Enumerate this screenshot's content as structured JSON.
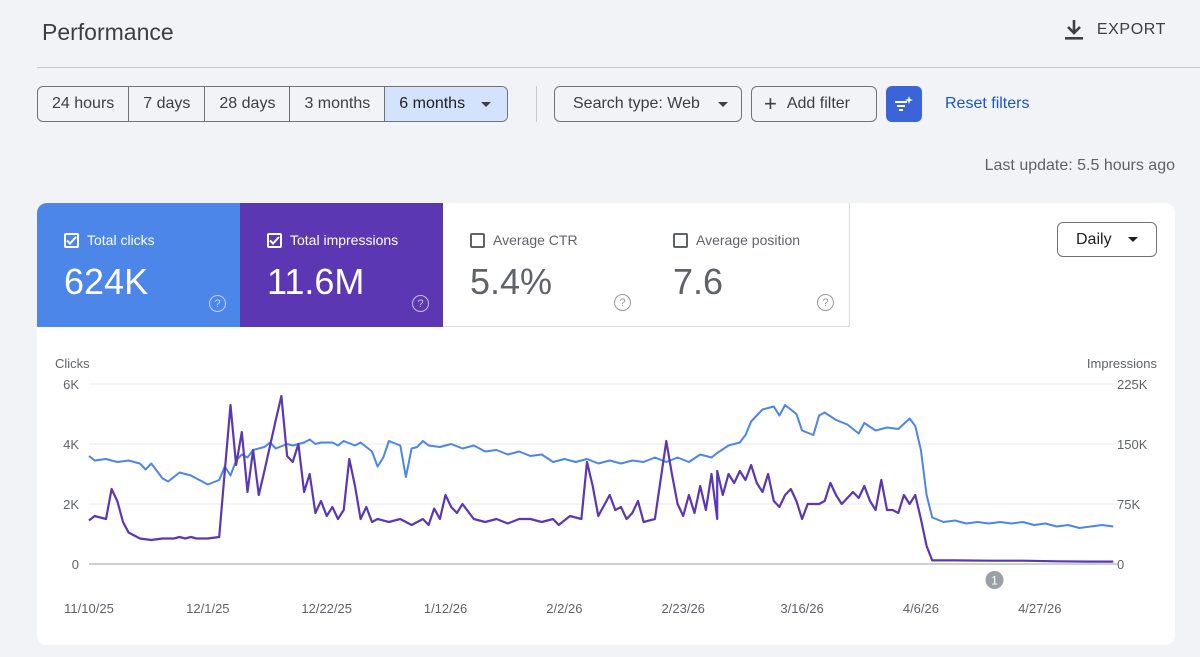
{
  "header": {
    "title": "Performance",
    "export_label": "EXPORT"
  },
  "toolbar": {
    "date_ranges": [
      "24 hours",
      "7 days",
      "28 days",
      "3 months",
      "6 months"
    ],
    "selected_range": "6 months",
    "search_type": "Search type: Web",
    "add_filter": "Add filter",
    "reset_filters": "Reset filters"
  },
  "last_update": "Last update: 5.5 hours ago",
  "metrics": [
    {
      "label": "Total clicks",
      "value": "624K",
      "checked": true
    },
    {
      "label": "Total impressions",
      "value": "11.6M",
      "checked": true
    },
    {
      "label": "Average CTR",
      "value": "5.4%",
      "checked": false
    },
    {
      "label": "Average position",
      "value": "7.6",
      "checked": false
    }
  ],
  "granularity": "Daily",
  "colors": {
    "clicks": "#4c86e8",
    "impressions": "#5b37b3",
    "accent": "#3a64d8",
    "link": "#1a56c4"
  },
  "chart_data": {
    "type": "line",
    "left_axis_label": "Clicks",
    "right_axis_label": "Impressions",
    "left_ticks": [
      "0",
      "2K",
      "4K",
      "6K"
    ],
    "right_ticks": [
      "0",
      "75K",
      "150K",
      "225K"
    ],
    "left_ylim": [
      0,
      6000
    ],
    "right_ylim": [
      0,
      225000
    ],
    "x_ticks": [
      "11/10/25",
      "12/1/25",
      "12/22/25",
      "1/12/26",
      "2/2/26",
      "2/23/26",
      "3/16/26",
      "4/6/26",
      "4/27/26"
    ],
    "x_range": [
      "2025-11-10",
      "2026-05-11"
    ],
    "annotation": "1",
    "annotation_date": "2026-04-19",
    "grid": true,
    "series": [
      {
        "axis": "left",
        "color": "#4c86e8",
        "points": [
          [
            "2025-11-10",
            3600
          ],
          [
            "2025-11-11",
            3450
          ],
          [
            "2025-11-13",
            3500
          ],
          [
            "2025-11-15",
            3400
          ],
          [
            "2025-11-17",
            3450
          ],
          [
            "2025-11-19",
            3350
          ],
          [
            "2025-11-20",
            3150
          ],
          [
            "2025-11-21",
            3350
          ],
          [
            "2025-11-23",
            2850
          ],
          [
            "2025-11-24",
            2750
          ],
          [
            "2025-11-26",
            3050
          ],
          [
            "2025-11-28",
            2950
          ],
          [
            "2025-11-30",
            2750
          ],
          [
            "2025-12-01",
            2650
          ],
          [
            "2025-12-03",
            2800
          ],
          [
            "2025-12-04",
            3250
          ],
          [
            "2025-12-05",
            2950
          ],
          [
            "2025-12-06",
            3450
          ],
          [
            "2025-12-07",
            3650
          ],
          [
            "2025-12-08",
            3550
          ],
          [
            "2025-12-09",
            3800
          ],
          [
            "2025-12-11",
            3900
          ],
          [
            "2025-12-12",
            4050
          ],
          [
            "2025-12-13",
            3850
          ],
          [
            "2025-12-15",
            4000
          ],
          [
            "2025-12-16",
            3950
          ],
          [
            "2025-12-18",
            4050
          ],
          [
            "2025-12-19",
            4150
          ],
          [
            "2025-12-20",
            4000
          ],
          [
            "2025-12-21",
            4050
          ],
          [
            "2025-12-23",
            4050
          ],
          [
            "2025-12-24",
            3950
          ],
          [
            "2025-12-25",
            4100
          ],
          [
            "2025-12-27",
            3950
          ],
          [
            "2025-12-28",
            4050
          ],
          [
            "2025-12-30",
            3750
          ],
          [
            "2025-12-31",
            3250
          ],
          [
            "2026-01-01",
            3550
          ],
          [
            "2026-01-02",
            4100
          ],
          [
            "2026-01-04",
            3950
          ],
          [
            "2026-01-05",
            2900
          ],
          [
            "2026-01-06",
            3850
          ],
          [
            "2026-01-07",
            3900
          ],
          [
            "2026-01-08",
            4100
          ],
          [
            "2026-01-09",
            3950
          ],
          [
            "2026-01-11",
            3900
          ],
          [
            "2026-01-13",
            4000
          ],
          [
            "2026-01-15",
            3850
          ],
          [
            "2026-01-17",
            3950
          ],
          [
            "2026-01-19",
            3750
          ],
          [
            "2026-01-21",
            3800
          ],
          [
            "2026-01-23",
            3650
          ],
          [
            "2026-01-25",
            3750
          ],
          [
            "2026-01-27",
            3600
          ],
          [
            "2026-01-29",
            3650
          ],
          [
            "2026-01-31",
            3400
          ],
          [
            "2026-02-02",
            3500
          ],
          [
            "2026-02-04",
            3400
          ],
          [
            "2026-02-06",
            3500
          ],
          [
            "2026-02-08",
            3350
          ],
          [
            "2026-02-10",
            3450
          ],
          [
            "2026-02-12",
            3350
          ],
          [
            "2026-02-14",
            3450
          ],
          [
            "2026-02-16",
            3400
          ],
          [
            "2026-02-18",
            3550
          ],
          [
            "2026-02-20",
            3400
          ],
          [
            "2026-02-22",
            3550
          ],
          [
            "2026-02-24",
            3400
          ],
          [
            "2026-02-26",
            3650
          ],
          [
            "2026-02-28",
            3550
          ],
          [
            "2026-03-01",
            3700
          ],
          [
            "2026-03-03",
            3950
          ],
          [
            "2026-03-05",
            4050
          ],
          [
            "2026-03-06",
            4300
          ],
          [
            "2026-03-07",
            4750
          ],
          [
            "2026-03-09",
            5150
          ],
          [
            "2026-03-11",
            5250
          ],
          [
            "2026-03-12",
            4950
          ],
          [
            "2026-03-13",
            5300
          ],
          [
            "2026-03-15",
            5000
          ],
          [
            "2026-03-16",
            4450
          ],
          [
            "2026-03-18",
            4300
          ],
          [
            "2026-03-19",
            4950
          ],
          [
            "2026-03-20",
            5050
          ],
          [
            "2026-03-22",
            4800
          ],
          [
            "2026-03-24",
            4650
          ],
          [
            "2026-03-26",
            4350
          ],
          [
            "2026-03-27",
            4700
          ],
          [
            "2026-03-29",
            4450
          ],
          [
            "2026-03-31",
            4550
          ],
          [
            "2026-04-02",
            4500
          ],
          [
            "2026-04-04",
            4850
          ],
          [
            "2026-04-05",
            4600
          ],
          [
            "2026-04-06",
            3800
          ],
          [
            "2026-04-07",
            2300
          ],
          [
            "2026-04-08",
            1550
          ],
          [
            "2026-04-10",
            1400
          ],
          [
            "2026-04-12",
            1450
          ],
          [
            "2026-04-14",
            1350
          ],
          [
            "2026-04-16",
            1400
          ],
          [
            "2026-04-18",
            1350
          ],
          [
            "2026-04-20",
            1400
          ],
          [
            "2026-04-22",
            1350
          ],
          [
            "2026-04-24",
            1400
          ],
          [
            "2026-04-26",
            1300
          ],
          [
            "2026-04-28",
            1350
          ],
          [
            "2026-04-30",
            1250
          ],
          [
            "2026-05-02",
            1300
          ],
          [
            "2026-05-04",
            1200
          ],
          [
            "2026-05-06",
            1250
          ],
          [
            "2026-05-08",
            1300
          ],
          [
            "2026-05-10",
            1250
          ]
        ]
      },
      {
        "axis": "left",
        "color": "#5b37b3",
        "points": [
          [
            "2025-11-10",
            1450
          ],
          [
            "2025-11-11",
            1600
          ],
          [
            "2025-11-13",
            1500
          ],
          [
            "2025-11-14",
            2500
          ],
          [
            "2025-11-15",
            2100
          ],
          [
            "2025-11-16",
            1400
          ],
          [
            "2025-11-17",
            1050
          ],
          [
            "2025-11-19",
            850
          ],
          [
            "2025-11-21",
            800
          ],
          [
            "2025-11-23",
            850
          ],
          [
            "2025-11-25",
            850
          ],
          [
            "2025-11-26",
            900
          ],
          [
            "2025-11-27",
            850
          ],
          [
            "2025-11-28",
            900
          ],
          [
            "2025-11-29",
            850
          ],
          [
            "2025-12-01",
            850
          ],
          [
            "2025-12-03",
            900
          ],
          [
            "2025-12-04",
            3100
          ],
          [
            "2025-12-05",
            5300
          ],
          [
            "2025-12-06",
            3300
          ],
          [
            "2025-12-07",
            4400
          ],
          [
            "2025-12-08",
            2400
          ],
          [
            "2025-12-09",
            3800
          ],
          [
            "2025-12-10",
            2300
          ],
          [
            "2025-12-11",
            3100
          ],
          [
            "2025-12-13",
            4800
          ],
          [
            "2025-12-14",
            5600
          ],
          [
            "2025-12-15",
            3600
          ],
          [
            "2025-12-16",
            3400
          ],
          [
            "2025-12-17",
            4000
          ],
          [
            "2025-12-18",
            2400
          ],
          [
            "2025-12-19",
            3000
          ],
          [
            "2025-12-20",
            1700
          ],
          [
            "2025-12-21",
            2100
          ],
          [
            "2025-12-22",
            1600
          ],
          [
            "2025-12-23",
            1900
          ],
          [
            "2025-12-24",
            1500
          ],
          [
            "2025-12-25",
            1800
          ],
          [
            "2025-12-26",
            3500
          ],
          [
            "2025-12-27",
            2600
          ],
          [
            "2025-12-28",
            1500
          ],
          [
            "2025-12-29",
            1900
          ],
          [
            "2025-12-30",
            1400
          ],
          [
            "2025-12-31",
            1500
          ],
          [
            "2026-01-02",
            1400
          ],
          [
            "2026-01-04",
            1500
          ],
          [
            "2026-01-06",
            1300
          ],
          [
            "2026-01-08",
            1500
          ],
          [
            "2026-01-09",
            1300
          ],
          [
            "2026-01-10",
            1850
          ],
          [
            "2026-01-11",
            1500
          ],
          [
            "2026-01-12",
            2300
          ],
          [
            "2026-01-13",
            1900
          ],
          [
            "2026-01-14",
            1700
          ],
          [
            "2026-01-15",
            2000
          ],
          [
            "2026-01-17",
            1500
          ],
          [
            "2026-01-19",
            1400
          ],
          [
            "2026-01-21",
            1500
          ],
          [
            "2026-01-23",
            1350
          ],
          [
            "2026-01-25",
            1500
          ],
          [
            "2026-01-27",
            1500
          ],
          [
            "2026-01-29",
            1400
          ],
          [
            "2026-01-31",
            1500
          ],
          [
            "2026-02-01",
            1300
          ],
          [
            "2026-02-03",
            1600
          ],
          [
            "2026-02-05",
            1500
          ],
          [
            "2026-02-06",
            3400
          ],
          [
            "2026-02-07",
            2600
          ],
          [
            "2026-02-08",
            1600
          ],
          [
            "2026-02-10",
            2300
          ],
          [
            "2026-02-11",
            1800
          ],
          [
            "2026-02-12",
            1900
          ],
          [
            "2026-02-13",
            1500
          ],
          [
            "2026-02-14",
            1700
          ],
          [
            "2026-02-15",
            2100
          ],
          [
            "2026-02-16",
            1400
          ],
          [
            "2026-02-18",
            1500
          ],
          [
            "2026-02-20",
            4100
          ],
          [
            "2026-02-21",
            3000
          ],
          [
            "2026-02-22",
            2000
          ],
          [
            "2026-02-23",
            1600
          ],
          [
            "2026-02-24",
            2300
          ],
          [
            "2026-02-25",
            1700
          ],
          [
            "2026-02-26",
            2600
          ],
          [
            "2026-02-27",
            1800
          ],
          [
            "2026-02-28",
            3000
          ],
          [
            "2026-02-29",
            1500
          ],
          [
            "2026-03-01",
            3100
          ],
          [
            "2026-03-02",
            2300
          ],
          [
            "2026-03-03",
            3000
          ],
          [
            "2026-03-04",
            2700
          ],
          [
            "2026-03-05",
            3100
          ],
          [
            "2026-03-06",
            2800
          ],
          [
            "2026-03-07",
            3300
          ],
          [
            "2026-03-08",
            2700
          ],
          [
            "2026-03-09",
            2400
          ],
          [
            "2026-03-10",
            3000
          ],
          [
            "2026-03-11",
            2100
          ],
          [
            "2026-03-12",
            1900
          ],
          [
            "2026-03-13",
            2300
          ],
          [
            "2026-03-14",
            2500
          ],
          [
            "2026-03-15",
            2100
          ],
          [
            "2026-03-16",
            1500
          ],
          [
            "2026-03-17",
            2000
          ],
          [
            "2026-03-18",
            2000
          ],
          [
            "2026-03-19",
            2000
          ],
          [
            "2026-03-20",
            2100
          ],
          [
            "2026-03-21",
            2700
          ],
          [
            "2026-03-22",
            2300
          ],
          [
            "2026-03-23",
            2000
          ],
          [
            "2026-03-24",
            2200
          ],
          [
            "2026-03-25",
            2400
          ],
          [
            "2026-03-26",
            2200
          ],
          [
            "2026-03-27",
            2600
          ],
          [
            "2026-03-28",
            2100
          ],
          [
            "2026-03-29",
            1800
          ],
          [
            "2026-03-30",
            2800
          ],
          [
            "2026-03-31",
            1800
          ],
          [
            "2026-04-01",
            1800
          ],
          [
            "2026-04-02",
            1700
          ],
          [
            "2026-04-03",
            2300
          ],
          [
            "2026-04-04",
            2000
          ],
          [
            "2026-04-05",
            2300
          ],
          [
            "2026-04-06",
            1500
          ],
          [
            "2026-04-07",
            600
          ],
          [
            "2026-04-08",
            120
          ],
          [
            "2026-04-12",
            120
          ],
          [
            "2026-04-18",
            110
          ],
          [
            "2026-04-24",
            110
          ],
          [
            "2026-04-30",
            90
          ],
          [
            "2026-05-06",
            80
          ],
          [
            "2026-05-10",
            80
          ]
        ]
      }
    ]
  }
}
